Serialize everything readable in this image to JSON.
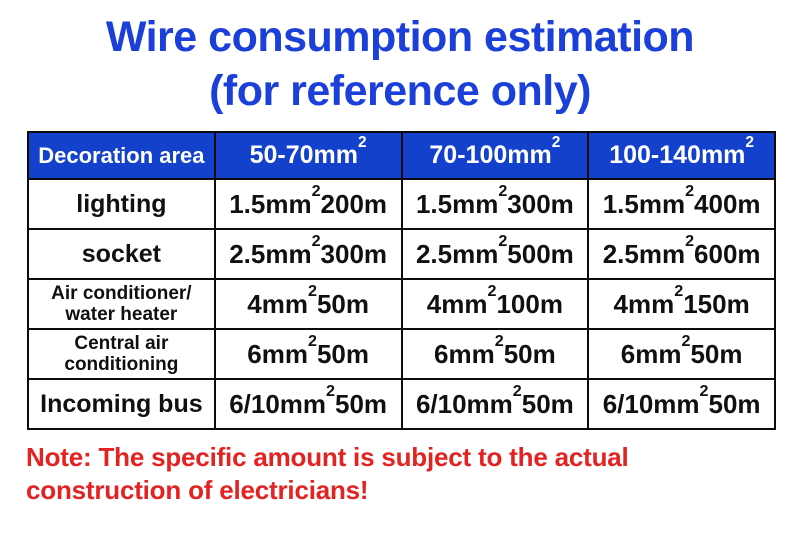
{
  "title": {
    "line1": "Wire consumption estimation",
    "line2": "(for reference only)"
  },
  "table": {
    "headers": [
      "Decoration area",
      "50-70mm²",
      "70-100mm²",
      "100-140mm²"
    ],
    "rows": [
      {
        "label": "lighting",
        "values": [
          "1.5mm²200m",
          "1.5mm²300m",
          "1.5mm²400m"
        ]
      },
      {
        "label": "socket",
        "values": [
          "2.5mm²300m",
          "2.5mm²500m",
          "2.5mm²600m"
        ]
      },
      {
        "label": "Air conditioner/\nwater heater",
        "values": [
          "4mm²50m",
          "4mm²100m",
          "4mm²150m"
        ]
      },
      {
        "label": "Central air\nconditioning",
        "values": [
          "6mm²50m",
          "6mm²50m",
          "6mm²50m"
        ]
      },
      {
        "label": "Incoming bus",
        "values": [
          "6/10mm²50m",
          "6/10mm²50m",
          "6/10mm²50m"
        ]
      }
    ]
  },
  "note": {
    "text": "Note: The specific amount is subject to the actual\nconstruction of electricians!"
  },
  "chart_data": {
    "type": "table",
    "title": "Wire consumption estimation (for reference only)",
    "columns": [
      "Decoration area",
      "50-70mm²",
      "70-100mm²",
      "100-140mm²"
    ],
    "rows": [
      [
        "lighting",
        "1.5mm²200m",
        "1.5mm²300m",
        "1.5mm²400m"
      ],
      [
        "socket",
        "2.5mm²300m",
        "2.5mm²500m",
        "2.5mm²600m"
      ],
      [
        "Air conditioner/water heater",
        "4mm²50m",
        "4mm²100m",
        "4mm²150m"
      ],
      [
        "Central air conditioning",
        "6mm²50m",
        "6mm²50m",
        "6mm²50m"
      ],
      [
        "Incoming bus",
        "6/10mm²50m",
        "6/10mm²50m",
        "6/10mm²50m"
      ]
    ],
    "note": "Note: The specific amount is subject to the actual construction of electricians!"
  },
  "colors": {
    "background": "#ffffff",
    "title_blue": "#1b3fd9",
    "header_blue": "#1341cb",
    "note_red": "#e32222",
    "border_black": "#0c0c0c",
    "header_text": "#ffffff",
    "cell_text": "#101010"
  }
}
